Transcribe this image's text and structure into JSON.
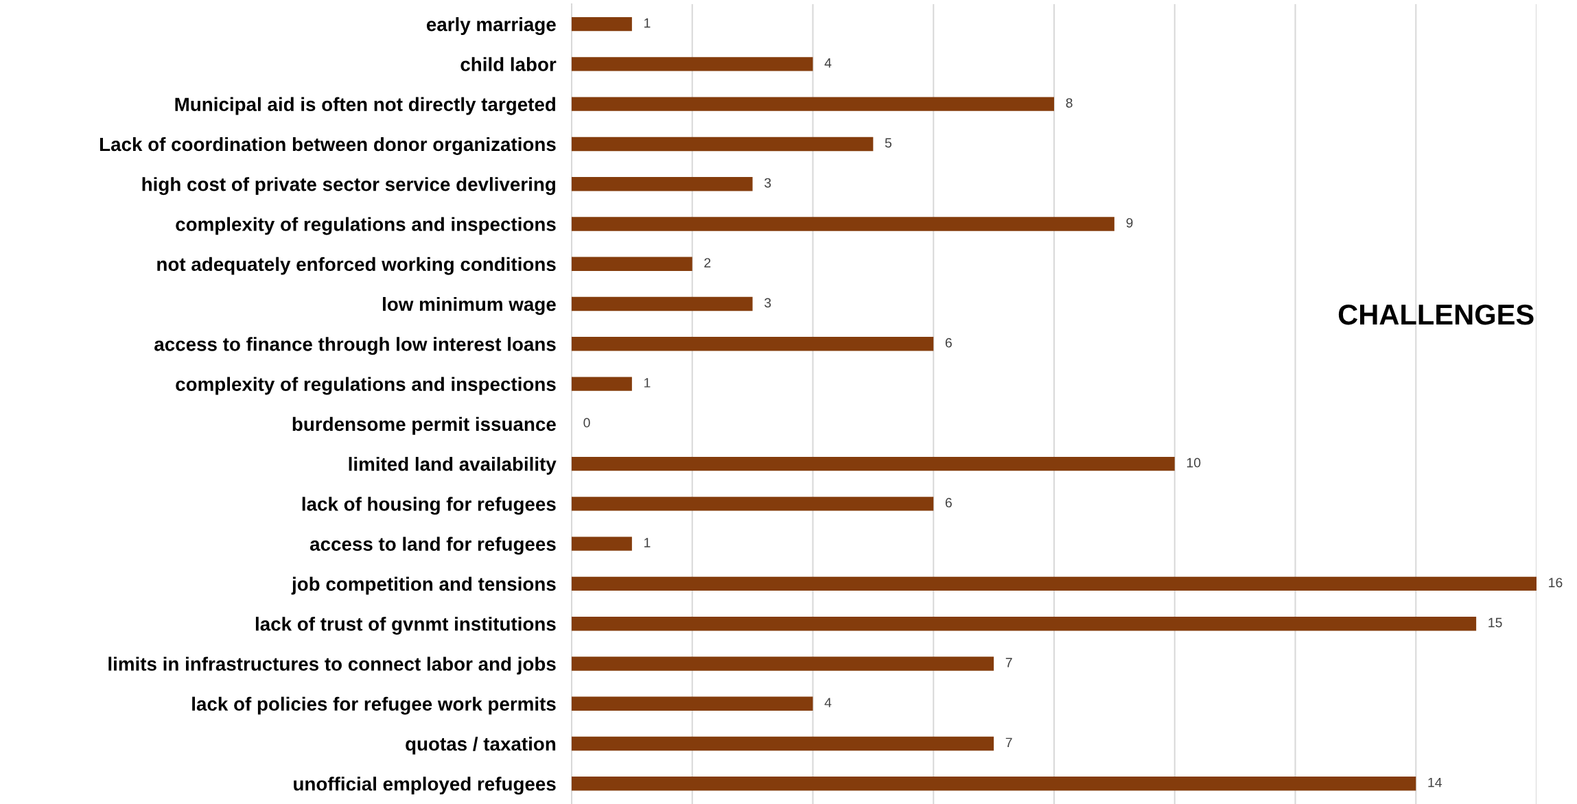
{
  "chart_data": {
    "type": "bar",
    "orientation": "horizontal",
    "title": "CHALLENGES",
    "categories": [
      "early marriage",
      "child labor",
      "Municipal aid is often not directly targeted",
      "Lack of coordination between donor organizations",
      "high cost of private sector service devlivering",
      "complexity of regulations and inspections",
      "not adequately enforced working conditions",
      "low minimum wage",
      "access to finance through low interest loans",
      "complexity of regulations and inspections",
      "burdensome permit issuance",
      "limited land availability",
      "lack of housing for refugees",
      "access to land for refugees",
      "job competition and tensions",
      "lack of trust of gvnmt institutions",
      "limits in infrastructures to connect labor and jobs",
      "lack of policies for refugee work permits",
      "quotas / taxation",
      "unofficial employed refugees"
    ],
    "values": [
      1,
      4,
      8,
      5,
      3,
      9,
      2,
      3,
      6,
      1,
      0,
      10,
      6,
      1,
      16,
      15,
      7,
      4,
      7,
      14
    ],
    "color": "#843c0c",
    "xlim": [
      0,
      16
    ],
    "xticks": [
      {
        "value": 0,
        "label": null
      },
      {
        "value": 2,
        "label": null
      },
      {
        "value": 4,
        "label": null
      },
      {
        "value": 6,
        "label": null
      },
      {
        "value": 8,
        "label": null
      },
      {
        "value": 10,
        "label": null
      },
      {
        "value": 12,
        "label": null
      },
      {
        "value": 14,
        "label": null
      },
      {
        "value": 16,
        "label": null
      }
    ],
    "tick_labels": "y",
    "grid": "x",
    "data_labels": true,
    "legend": false
  }
}
